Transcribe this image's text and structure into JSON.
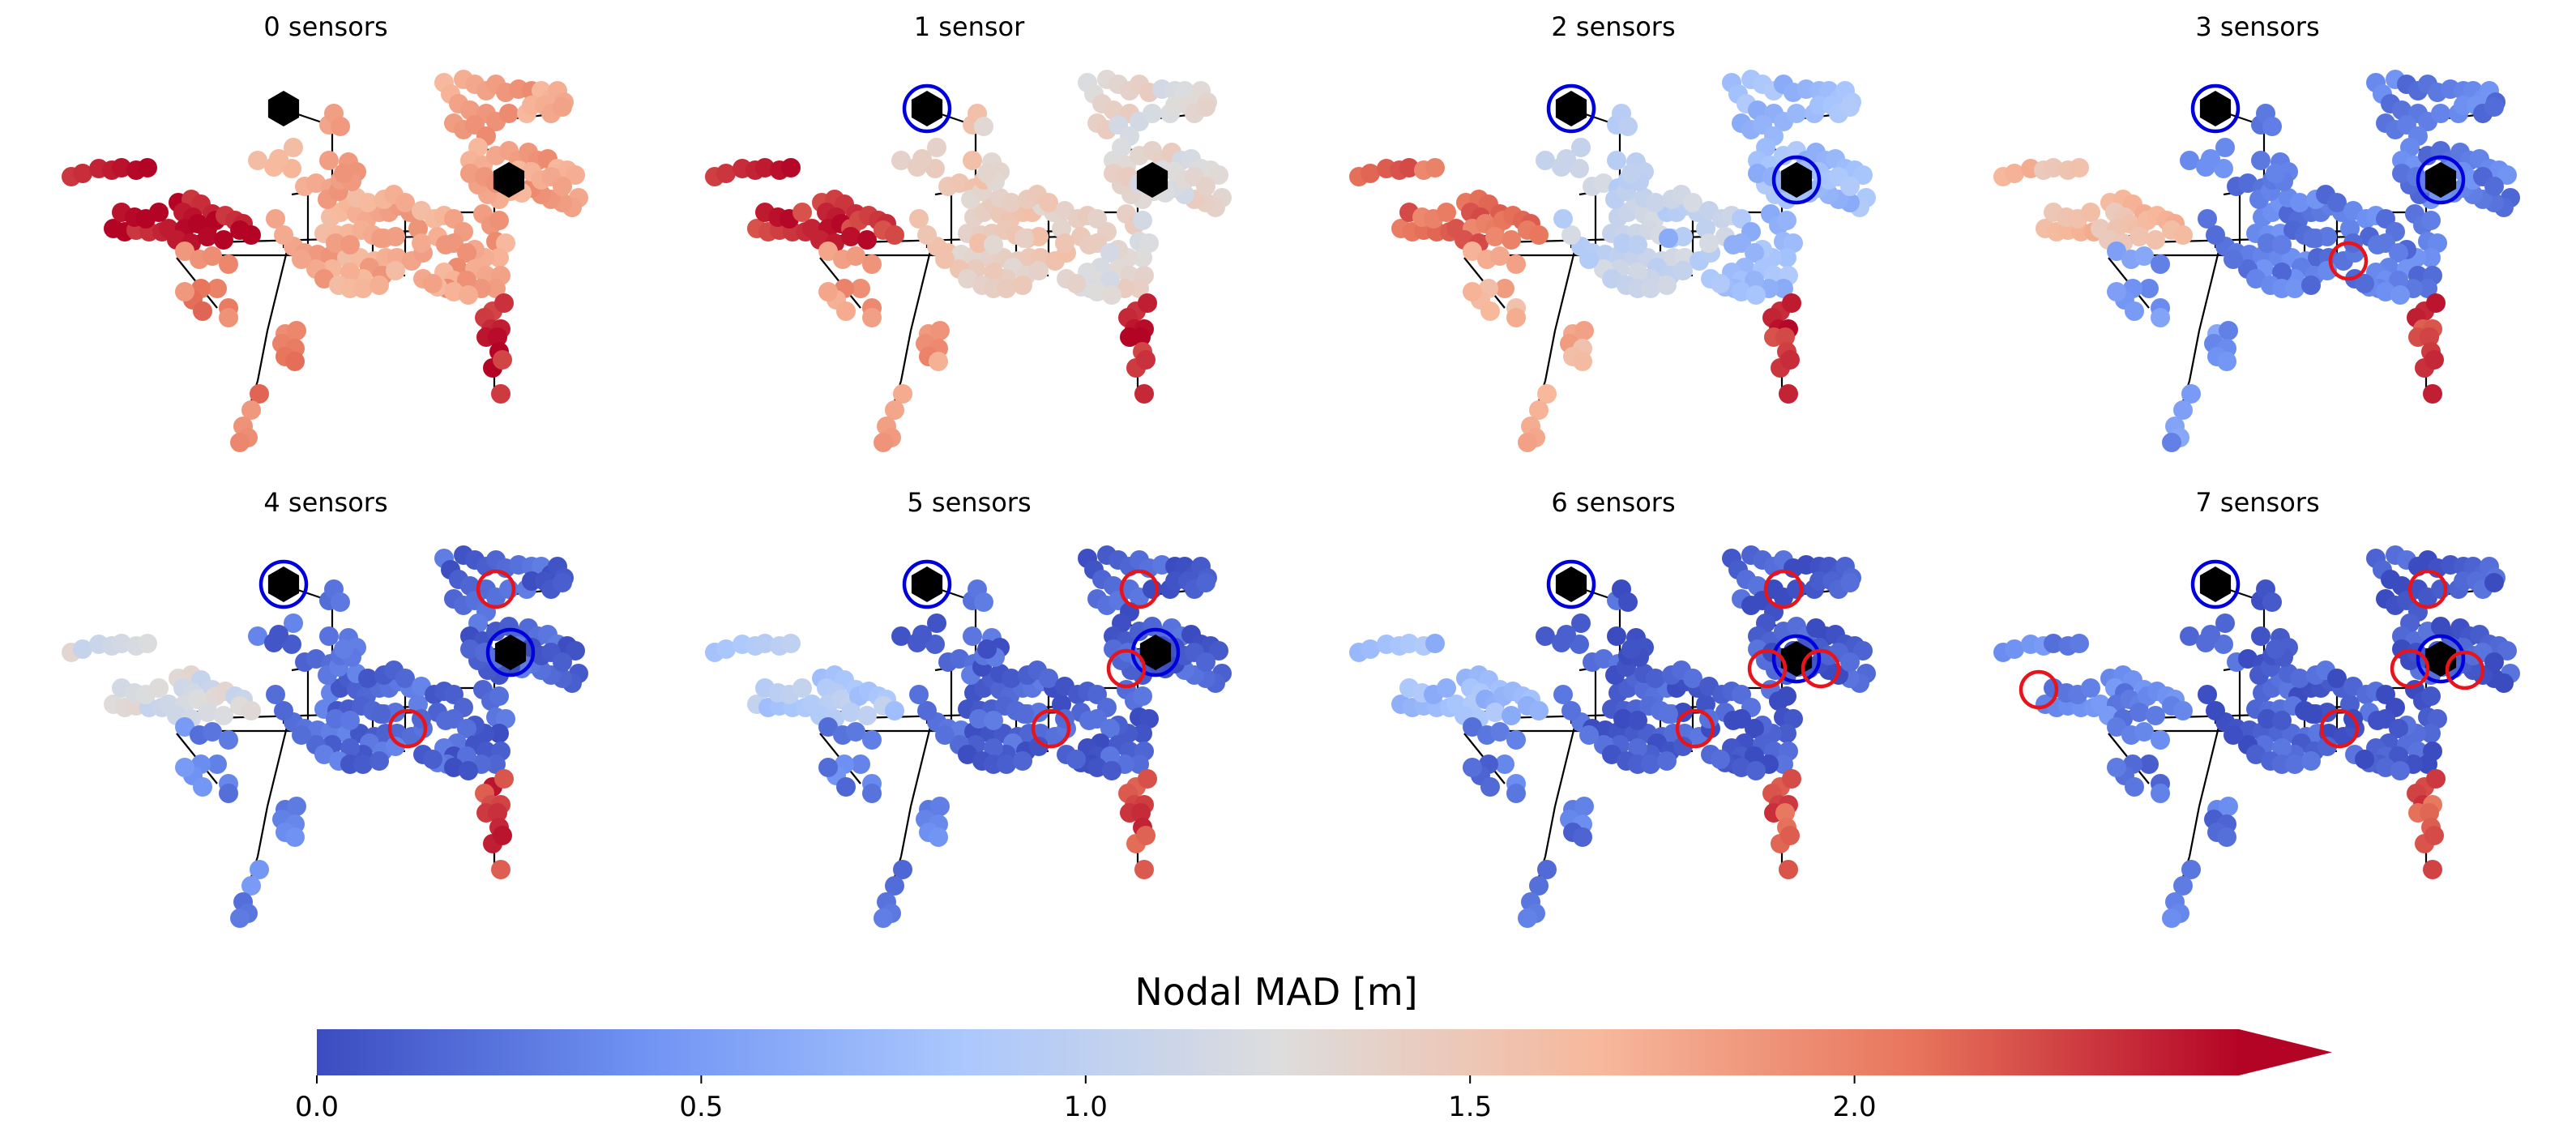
{
  "figure": {
    "panel_titles": [
      "0 sensors",
      "1 sensor",
      "2 sensors",
      "3 sensors",
      "4 sensors",
      "5 sensors",
      "6 sensors",
      "7 sensors"
    ]
  },
  "colorbar": {
    "label": "Nodal MAD [m]",
    "ticks": [
      "0.0",
      "0.5",
      "1.0",
      "1.5",
      "2.0"
    ],
    "tick_values": [
      0.0,
      0.5,
      1.0,
      1.5,
      2.0
    ],
    "vmin": 0.0,
    "vmax": 2.5,
    "extend": "max",
    "colormap": "coolwarm",
    "colors": [
      "#3b4cc0",
      "#6f92f3",
      "#aac7fd",
      "#dddddd",
      "#f7b89c",
      "#e7745b",
      "#b40426"
    ],
    "over_color": "#b40426"
  },
  "chart_data": [
    {
      "type": "scatter",
      "title": "0 sensors",
      "sensor_count": 0,
      "mad_levels_by_zone": {
        "west_branch": 2.45,
        "south_branch": 2.0,
        "center": 1.75,
        "east": 1.8,
        "south_tail": 2.4
      },
      "legend": "none"
    },
    {
      "type": "scatter",
      "title": "1 sensor",
      "sensor_count": 1,
      "mad_levels_by_zone": {
        "west_branch": 2.35,
        "south_branch": 1.85,
        "center": 1.45,
        "east": 1.3,
        "south_tail": 2.4
      },
      "legend": "none"
    },
    {
      "type": "scatter",
      "title": "2 sensors",
      "sensor_count": 2,
      "mad_levels_by_zone": {
        "west_branch": 2.1,
        "south_branch": 1.7,
        "center": 1.05,
        "east": 0.75,
        "south_tail": 2.35
      },
      "legend": "none"
    },
    {
      "type": "scatter",
      "title": "3 sensors",
      "sensor_count": 3,
      "mad_levels_by_zone": {
        "west_branch": 1.6,
        "south_branch": 0.45,
        "center": 0.3,
        "east": 0.3,
        "south_tail": 2.3
      },
      "legend": "none"
    },
    {
      "type": "scatter",
      "title": "4 sensors",
      "sensor_count": 4,
      "mad_levels_by_zone": {
        "west_branch": 1.2,
        "south_branch": 0.35,
        "center": 0.2,
        "east": 0.15,
        "south_tail": 2.3
      },
      "legend": "none"
    },
    {
      "type": "scatter",
      "title": "5 sensors",
      "sensor_count": 5,
      "mad_levels_by_zone": {
        "west_branch": 0.9,
        "south_branch": 0.3,
        "center": 0.15,
        "east": 0.12,
        "south_tail": 2.25
      },
      "legend": "none"
    },
    {
      "type": "scatter",
      "title": "6 sensors",
      "sensor_count": 6,
      "mad_levels_by_zone": {
        "west_branch": 0.75,
        "south_branch": 0.25,
        "center": 0.12,
        "east": 0.1,
        "south_tail": 2.2
      },
      "legend": "none"
    },
    {
      "type": "scatter",
      "title": "7 sensors",
      "sensor_count": 7,
      "mad_levels_by_zone": {
        "west_branch": 0.35,
        "south_branch": 0.25,
        "center": 0.12,
        "east": 0.1,
        "south_tail": 2.2
      },
      "legend": "none"
    }
  ]
}
